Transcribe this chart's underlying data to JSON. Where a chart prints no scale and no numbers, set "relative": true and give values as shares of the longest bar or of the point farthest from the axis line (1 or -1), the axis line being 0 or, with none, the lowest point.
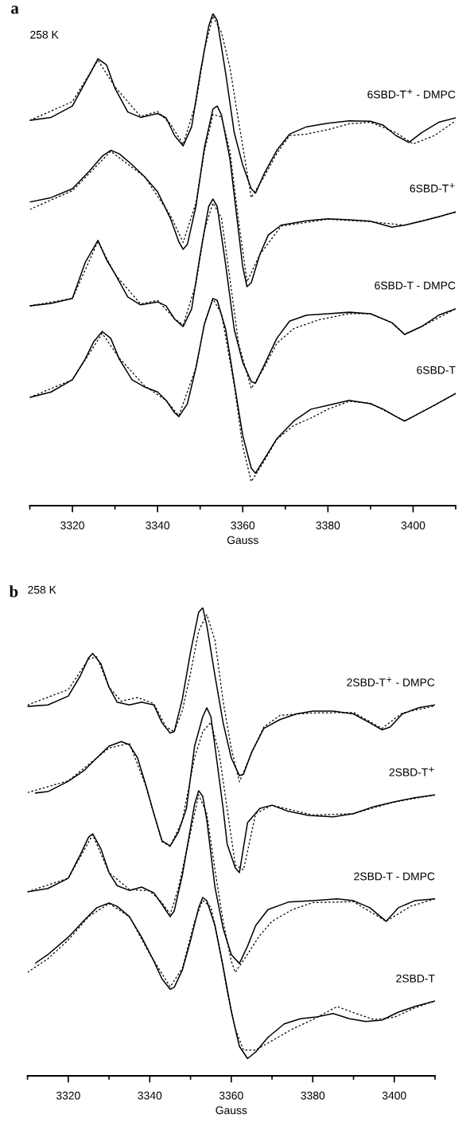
{
  "chart_data": [
    {
      "type": "line",
      "title": "a",
      "subtitle": "258 K",
      "xlabel": "Gauss",
      "relative": true,
      "tick_labels": "x",
      "marker": "none",
      "xlim": [
        3310,
        3410
      ],
      "xticks": [
        {
          "value": 3310,
          "label": null
        },
        3320,
        {
          "value": 3330,
          "label": null
        },
        3340,
        {
          "value": 3350,
          "label": null
        },
        3360,
        {
          "value": 3370,
          "label": null
        },
        3380,
        {
          "value": 3390,
          "label": null
        },
        3400,
        {
          "value": 3410,
          "label": null
        }
      ],
      "series": [
        {
          "name": "6SBD-T$^{+}$ - DMPC",
          "color": "#000000",
          "line_style": "solid",
          "x": [
            3310,
            3315,
            3320,
            3323,
            3326,
            3328,
            3330,
            3333,
            3336,
            3340,
            3342,
            3344,
            3346,
            3348,
            3350,
            3352,
            3353,
            3354,
            3356,
            3358,
            3360,
            3362,
            3363,
            3365,
            3368,
            3371,
            3375,
            3380,
            3385,
            3390,
            3393,
            3396,
            3399,
            3402,
            3406,
            3410
          ],
          "values": [
            0.783,
            0.789,
            0.812,
            0.86,
            0.908,
            0.896,
            0.848,
            0.8,
            0.789,
            0.797,
            0.788,
            0.752,
            0.731,
            0.77,
            0.878,
            0.974,
            1.0,
            0.986,
            0.878,
            0.758,
            0.692,
            0.644,
            0.635,
            0.674,
            0.722,
            0.755,
            0.77,
            0.777,
            0.782,
            0.781,
            0.773,
            0.752,
            0.738,
            0.758,
            0.779,
            0.788
          ]
        },
        {
          "color": "#000000",
          "line_style": "dashed",
          "x": [
            3310,
            3320,
            3326,
            3330,
            3336,
            3340,
            3343,
            3346,
            3349,
            3351,
            3353,
            3355,
            3357,
            3359,
            3362,
            3365,
            3368,
            3371,
            3375,
            3380,
            3385,
            3390,
            3396,
            3400,
            3405,
            3410
          ],
          "values": [
            0.783,
            0.821,
            0.905,
            0.851,
            0.791,
            0.801,
            0.776,
            0.734,
            0.818,
            0.926,
            0.995,
            0.962,
            0.89,
            0.782,
            0.626,
            0.668,
            0.716,
            0.752,
            0.755,
            0.764,
            0.776,
            0.779,
            0.758,
            0.735,
            0.752,
            0.782
          ]
        },
        {
          "name": "6SBD-T$^{+}$",
          "color": "#000000",
          "line_style": "solid",
          "x": [
            3310,
            3315,
            3320,
            3324,
            3327,
            3329,
            3331,
            3334,
            3337,
            3340,
            3343,
            3345,
            3346,
            3347,
            3349,
            3351,
            3353,
            3354,
            3355,
            3357,
            3359,
            3360,
            3361,
            3362,
            3364,
            3366,
            3369,
            3375,
            3380,
            3385,
            3390,
            3395,
            3398,
            3402,
            3406,
            3410
          ],
          "values": [
            0.617,
            0.626,
            0.644,
            0.68,
            0.71,
            0.722,
            0.715,
            0.693,
            0.668,
            0.638,
            0.584,
            0.536,
            0.521,
            0.531,
            0.608,
            0.728,
            0.806,
            0.812,
            0.794,
            0.704,
            0.558,
            0.485,
            0.445,
            0.453,
            0.51,
            0.55,
            0.57,
            0.579,
            0.583,
            0.581,
            0.578,
            0.566,
            0.57,
            0.578,
            0.587,
            0.597
          ]
        },
        {
          "color": "#000000",
          "line_style": "dashed",
          "x": [
            3310,
            3320,
            3329,
            3337,
            3343,
            3346,
            3349,
            3351,
            3353,
            3355,
            3357,
            3359,
            3361,
            3364,
            3369,
            3380,
            3390,
            3398,
            3410
          ],
          "values": [
            0.602,
            0.64,
            0.72,
            0.668,
            0.59,
            0.535,
            0.615,
            0.72,
            0.795,
            0.79,
            0.72,
            0.58,
            0.455,
            0.51,
            0.568,
            0.582,
            0.577,
            0.57,
            0.596
          ]
        },
        {
          "name": "6SBD-T - DMPC",
          "color": "#000000",
          "line_style": "solid",
          "x": [
            3310,
            3315,
            3320,
            3323,
            3326,
            3328,
            3330,
            3333,
            3336,
            3340,
            3342,
            3344,
            3346,
            3348,
            3350,
            3352,
            3353,
            3354,
            3356,
            3358,
            3360,
            3362,
            3363,
            3365,
            3368,
            3371,
            3375,
            3380,
            3385,
            3390,
            3395,
            3398,
            3402,
            3406,
            3410
          ],
          "values": [
            0.406,
            0.411,
            0.421,
            0.494,
            0.539,
            0.5,
            0.471,
            0.424,
            0.408,
            0.414,
            0.406,
            0.379,
            0.364,
            0.4,
            0.51,
            0.608,
            0.623,
            0.608,
            0.489,
            0.358,
            0.291,
            0.252,
            0.249,
            0.285,
            0.34,
            0.375,
            0.387,
            0.39,
            0.393,
            0.39,
            0.372,
            0.348,
            0.364,
            0.387,
            0.4
          ]
        },
        {
          "color": "#000000",
          "line_style": "dashed",
          "x": [
            3310,
            3320,
            3326,
            3330,
            3336,
            3340,
            3344,
            3346,
            3349,
            3351,
            3353,
            3355,
            3357,
            3359,
            3362,
            3365,
            3368,
            3372,
            3378,
            3385,
            3390,
            3395,
            3398,
            3402,
            3410
          ],
          "values": [
            0.406,
            0.421,
            0.537,
            0.47,
            0.41,
            0.417,
            0.38,
            0.367,
            0.45,
            0.56,
            0.615,
            0.585,
            0.46,
            0.33,
            0.238,
            0.28,
            0.33,
            0.36,
            0.378,
            0.39,
            0.39,
            0.372,
            0.348,
            0.364,
            0.4
          ]
        },
        {
          "name": "6SBD-T",
          "color": "#000000",
          "line_style": "solid",
          "x": [
            3310,
            3315,
            3320,
            3323,
            3325,
            3327,
            3329,
            3331,
            3334,
            3337,
            3340,
            3342,
            3344,
            3345,
            3347,
            3349,
            3351,
            3353,
            3354,
            3356,
            3358,
            3360,
            3362,
            3363,
            3365,
            3368,
            3372,
            3376,
            3380,
            3385,
            3390,
            3393,
            3396,
            3398,
            3400,
            3405,
            3410
          ],
          "values": [
            0.22,
            0.231,
            0.256,
            0.298,
            0.333,
            0.354,
            0.34,
            0.298,
            0.256,
            0.241,
            0.231,
            0.214,
            0.189,
            0.181,
            0.207,
            0.28,
            0.369,
            0.421,
            0.417,
            0.358,
            0.249,
            0.142,
            0.076,
            0.066,
            0.094,
            0.136,
            0.172,
            0.196,
            0.204,
            0.214,
            0.207,
            0.196,
            0.181,
            0.172,
            0.181,
            0.204,
            0.228
          ]
        },
        {
          "color": "#000000",
          "line_style": "dashed",
          "x": [
            3310,
            3320,
            3327,
            3331,
            3337,
            3342,
            3345,
            3349,
            3351,
            3353,
            3355,
            3358,
            3360,
            3362,
            3365,
            3368,
            3372,
            3376,
            3380,
            3385,
            3390,
            3396,
            3398,
            3405,
            3410
          ],
          "values": [
            0.22,
            0.256,
            0.35,
            0.3,
            0.243,
            0.214,
            0.183,
            0.28,
            0.37,
            0.42,
            0.39,
            0.245,
            0.12,
            0.049,
            0.09,
            0.135,
            0.163,
            0.178,
            0.196,
            0.212,
            0.208,
            0.181,
            0.172,
            0.204,
            0.228
          ]
        }
      ]
    },
    {
      "type": "line",
      "title": "b",
      "subtitle": "258 K",
      "xlabel": "Gauss",
      "relative": true,
      "tick_labels": "x",
      "marker": "none",
      "xlim": [
        3310,
        3410
      ],
      "xticks": [
        {
          "value": 3310,
          "label": null
        },
        3320,
        {
          "value": 3330,
          "label": null
        },
        3340,
        {
          "value": 3350,
          "label": null
        },
        3360,
        {
          "value": 3370,
          "label": null
        },
        3380,
        {
          "value": 3390,
          "label": null
        },
        3400,
        {
          "value": 3410,
          "label": null
        }
      ],
      "series": [
        {
          "name": "2SBD-T$^{+}$ - DMPC",
          "color": "#000000",
          "line_style": "solid",
          "x": [
            3310,
            3315,
            3320,
            3323,
            3325,
            3326,
            3328,
            3330,
            3332,
            3335,
            3338,
            3341,
            3343,
            3345,
            3346,
            3348,
            3350,
            3352,
            3353,
            3354,
            3356,
            3358,
            3360,
            3362,
            3363,
            3365,
            3368,
            3372,
            3376,
            3380,
            3385,
            3390,
            3394,
            3397,
            3399,
            3402,
            3406,
            3410
          ],
          "values": [
            0.789,
            0.792,
            0.811,
            0.855,
            0.893,
            0.902,
            0.88,
            0.83,
            0.798,
            0.792,
            0.798,
            0.792,
            0.754,
            0.732,
            0.735,
            0.805,
            0.905,
            0.99,
            1.0,
            0.962,
            0.855,
            0.754,
            0.679,
            0.641,
            0.644,
            0.691,
            0.742,
            0.761,
            0.773,
            0.779,
            0.779,
            0.773,
            0.754,
            0.739,
            0.745,
            0.773,
            0.786,
            0.792
          ]
        },
        {
          "color": "#000000",
          "line_style": "dashed",
          "x": [
            3310,
            3320,
            3325,
            3327,
            3330,
            3333,
            3337,
            3341,
            3344,
            3346,
            3348,
            3350,
            3352,
            3354,
            3356,
            3358,
            3360,
            3362,
            3365,
            3368,
            3372,
            3380,
            3390,
            3397,
            3402,
            3410
          ],
          "values": [
            0.792,
            0.825,
            0.89,
            0.895,
            0.83,
            0.8,
            0.808,
            0.795,
            0.745,
            0.735,
            0.78,
            0.86,
            0.95,
            0.985,
            0.93,
            0.8,
            0.7,
            0.628,
            0.69,
            0.745,
            0.77,
            0.775,
            0.776,
            0.742,
            0.775,
            0.79
          ]
        },
        {
          "name": "2SBD-T$^{+}$",
          "color": "#000000",
          "line_style": "solid",
          "x": [
            3312,
            3315,
            3320,
            3324,
            3327,
            3330,
            3333,
            3335,
            3337,
            3339,
            3341,
            3343,
            3345,
            3347,
            3349,
            3351,
            3353,
            3354,
            3355,
            3356,
            3358,
            3359,
            3361,
            3362,
            3364,
            3367,
            3370,
            3374,
            3379,
            3385,
            3390,
            3395,
            3400,
            3405,
            3410
          ],
          "values": [
            0.604,
            0.607,
            0.629,
            0.653,
            0.679,
            0.704,
            0.714,
            0.707,
            0.679,
            0.622,
            0.56,
            0.502,
            0.491,
            0.52,
            0.571,
            0.704,
            0.767,
            0.786,
            0.767,
            0.704,
            0.571,
            0.495,
            0.444,
            0.434,
            0.541,
            0.571,
            0.578,
            0.565,
            0.556,
            0.553,
            0.56,
            0.575,
            0.585,
            0.594,
            0.6
          ]
        },
        {
          "color": "#000000",
          "line_style": "dashed",
          "x": [
            3310,
            3320,
            3330,
            3335,
            3339,
            3343,
            3345,
            3348,
            3351,
            3353,
            3355,
            3357,
            3359,
            3361,
            3363,
            3366,
            3370,
            3380,
            3390,
            3400,
            3410
          ],
          "values": [
            0.605,
            0.63,
            0.7,
            0.71,
            0.62,
            0.5,
            0.49,
            0.545,
            0.68,
            0.735,
            0.755,
            0.69,
            0.57,
            0.45,
            0.44,
            0.56,
            0.578,
            0.557,
            0.56,
            0.585,
            0.6
          ]
        },
        {
          "name": "2SBD-T - DMPC",
          "color": "#000000",
          "line_style": "solid",
          "x": [
            3310,
            3315,
            3320,
            3323,
            3325,
            3326,
            3328,
            3330,
            3332,
            3335,
            3338,
            3341,
            3343,
            3345,
            3346,
            3348,
            3350,
            3351,
            3352,
            3353,
            3354,
            3356,
            3358,
            3360,
            3362,
            3364,
            3366,
            3369,
            3374,
            3380,
            3386,
            3390,
            3394,
            3398,
            3401,
            3405,
            3410
          ],
          "values": [
            0.393,
            0.4,
            0.422,
            0.473,
            0.51,
            0.517,
            0.485,
            0.434,
            0.406,
            0.396,
            0.403,
            0.391,
            0.366,
            0.34,
            0.352,
            0.429,
            0.529,
            0.58,
            0.609,
            0.597,
            0.546,
            0.403,
            0.315,
            0.259,
            0.24,
            0.277,
            0.321,
            0.355,
            0.371,
            0.374,
            0.378,
            0.374,
            0.359,
            0.33,
            0.359,
            0.374,
            0.378
          ]
        },
        {
          "color": "#000000",
          "line_style": "dashed",
          "x": [
            3310,
            3320,
            3326,
            3330,
            3335,
            3340,
            3343,
            3345,
            3347,
            3350,
            3352,
            3354,
            3356,
            3358,
            3360,
            3361,
            3364,
            3367,
            3370,
            3375,
            3380,
            3390,
            3398,
            3404,
            3410
          ],
          "values": [
            0.393,
            0.422,
            0.515,
            0.434,
            0.398,
            0.395,
            0.37,
            0.345,
            0.4,
            0.52,
            0.6,
            0.56,
            0.44,
            0.33,
            0.245,
            0.221,
            0.26,
            0.3,
            0.33,
            0.355,
            0.37,
            0.372,
            0.33,
            0.362,
            0.378
          ]
        },
        {
          "name": "2SBD-T",
          "color": "#000000",
          "line_style": "solid",
          "x": [
            3312,
            3315,
            3320,
            3324,
            3327,
            3330,
            3332,
            3335,
            3338,
            3341,
            3343,
            3345,
            3346,
            3348,
            3350,
            3352,
            3353,
            3354,
            3356,
            3358,
            3360,
            3362,
            3364,
            3366,
            3369,
            3373,
            3377,
            3381,
            3385,
            3389,
            3393,
            3397,
            3401,
            3405,
            3410
          ],
          "values": [
            0.241,
            0.259,
            0.296,
            0.333,
            0.359,
            0.369,
            0.362,
            0.34,
            0.296,
            0.245,
            0.207,
            0.185,
            0.189,
            0.226,
            0.289,
            0.359,
            0.381,
            0.374,
            0.321,
            0.233,
            0.138,
            0.063,
            0.037,
            0.051,
            0.082,
            0.111,
            0.122,
            0.126,
            0.133,
            0.122,
            0.116,
            0.119,
            0.136,
            0.148,
            0.16
          ]
        },
        {
          "color": "#000000",
          "line_style": "dashed",
          "x": [
            3310,
            3315,
            3320,
            3325,
            3330,
            3335,
            3340,
            3345,
            3348,
            3351,
            3353,
            3355,
            3357,
            3359,
            3361,
            3363,
            3366,
            3370,
            3375,
            3380,
            3386,
            3390,
            3395,
            3400,
            3405,
            3410
          ],
          "values": [
            0.221,
            0.25,
            0.29,
            0.34,
            0.368,
            0.34,
            0.26,
            0.19,
            0.23,
            0.33,
            0.375,
            0.36,
            0.28,
            0.18,
            0.1,
            0.055,
            0.055,
            0.075,
            0.1,
            0.12,
            0.148,
            0.135,
            0.12,
            0.125,
            0.145,
            0.16
          ]
        }
      ]
    }
  ]
}
